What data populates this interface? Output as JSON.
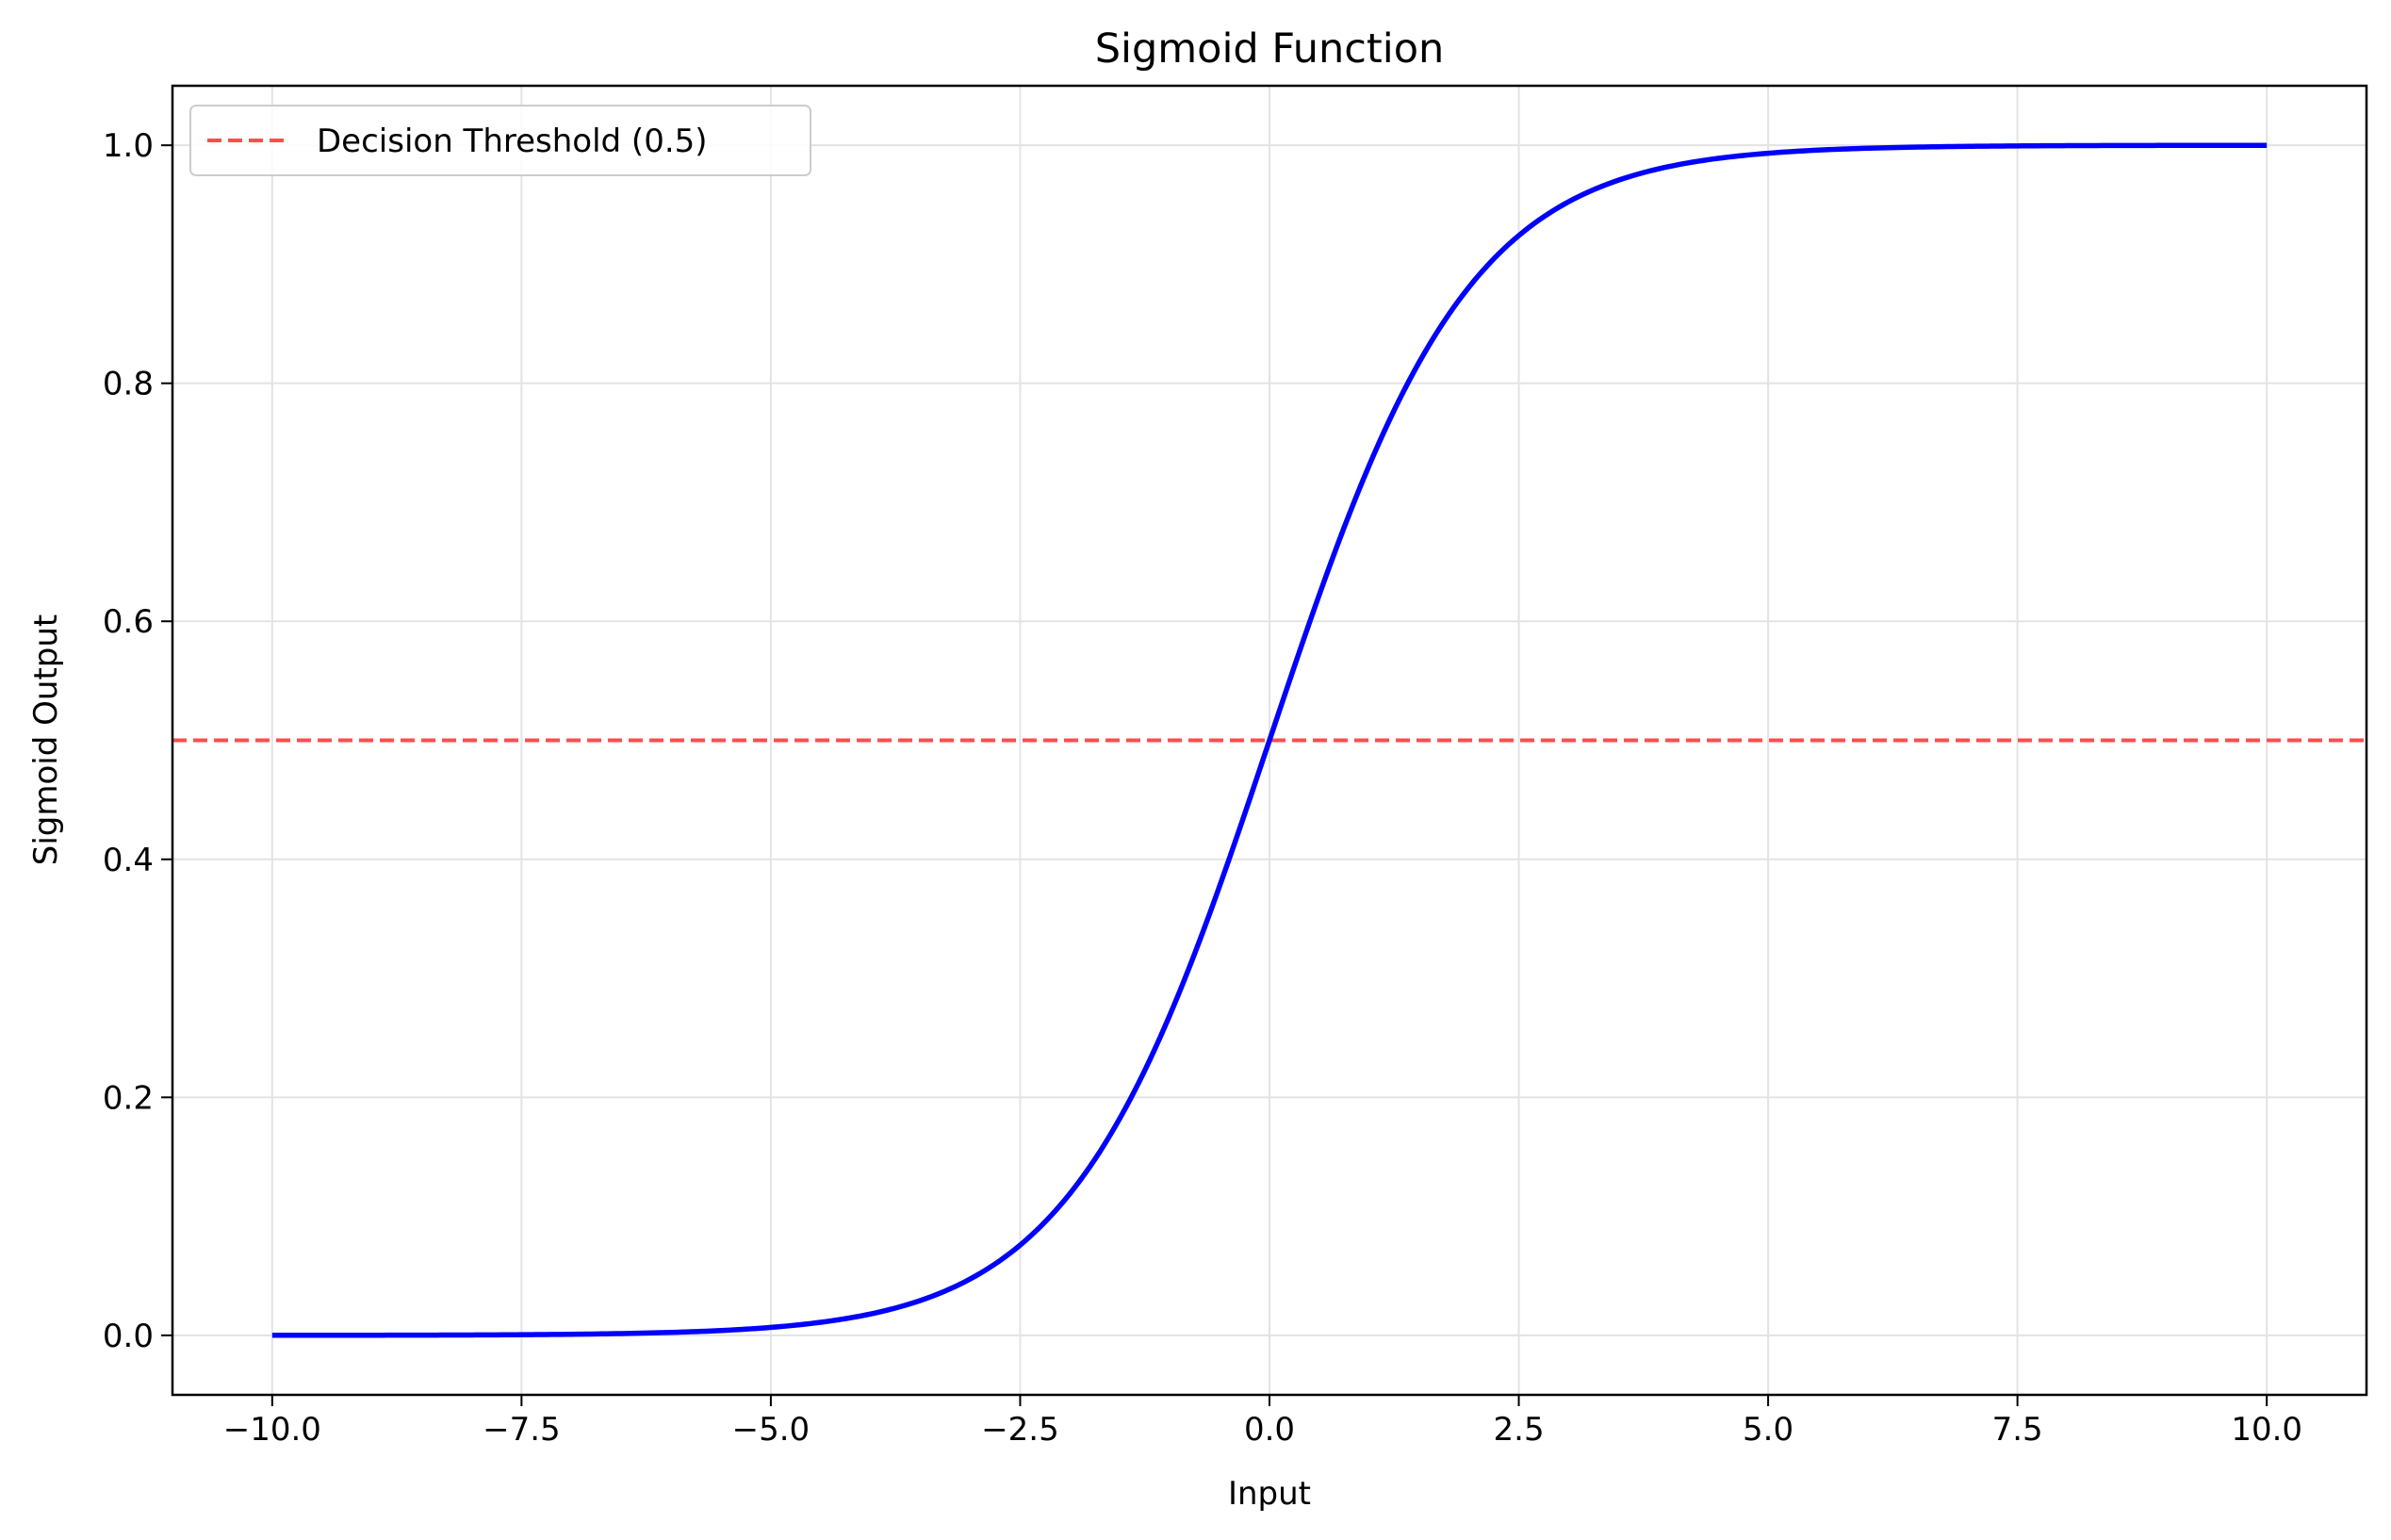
{
  "chart_data": {
    "type": "line",
    "title": "Sigmoid Function",
    "xlabel": "Input",
    "ylabel": "Sigmoid Output",
    "xlim": [
      -11.0,
      11.0
    ],
    "ylim": [
      -0.05,
      1.05
    ],
    "xticks": [
      -10.0,
      -7.5,
      -5.0,
      -2.5,
      0.0,
      2.5,
      5.0,
      7.5,
      10.0
    ],
    "xtick_labels": [
      "−10.0",
      "−7.5",
      "−5.0",
      "−2.5",
      "0.0",
      "2.5",
      "5.0",
      "7.5",
      "10.0"
    ],
    "yticks": [
      0.0,
      0.2,
      0.4,
      0.6,
      0.8,
      1.0
    ],
    "ytick_labels": [
      "0.0",
      "0.2",
      "0.4",
      "0.6",
      "0.8",
      "1.0"
    ],
    "grid": true,
    "legend_placement": "top-left",
    "series": [
      {
        "color": "#0000ff",
        "function": "1 / (1 + exp(-x))",
        "x": [
          -10.0,
          -9.0,
          -8.0,
          -7.5,
          -7.0,
          -6.5,
          -6.0,
          -5.5,
          -5.0,
          -4.5,
          -4.0,
          -3.5,
          -3.0,
          -2.75,
          -2.5,
          -2.25,
          -2.0,
          -1.75,
          -1.5,
          -1.25,
          -1.0,
          -0.75,
          -0.5,
          -0.25,
          0.0,
          0.25,
          0.5,
          0.75,
          1.0,
          1.25,
          1.5,
          1.75,
          2.0,
          2.25,
          2.5,
          2.75,
          3.0,
          3.5,
          4.0,
          4.5,
          5.0,
          5.5,
          6.0,
          6.5,
          7.0,
          7.5,
          8.0,
          9.0,
          10.0
        ],
        "y": [
          4.54e-05,
          0.0001234,
          0.0003354,
          0.0005528,
          0.0009111,
          0.0015011,
          0.0024726,
          0.0040701,
          0.0066929,
          0.0109869,
          0.0179862,
          0.0293122,
          0.0474259,
          0.0600866,
          0.0758582,
          0.0953495,
          0.1192029,
          0.1480472,
          0.1824255,
          0.2227001,
          0.2689414,
          0.3208213,
          0.3775407,
          0.4378235,
          0.5,
          0.5621765,
          0.6224593,
          0.6791787,
          0.7310586,
          0.7772999,
          0.8175745,
          0.8519528,
          0.8807971,
          0.9046505,
          0.9241418,
          0.9399134,
          0.9525741,
          0.9706878,
          0.9820138,
          0.9890131,
          0.9933071,
          0.9959299,
          0.9975274,
          0.9984989,
          0.9990889,
          0.9994472,
          0.9996646,
          0.9998766,
          0.9999546
        ]
      }
    ],
    "reference_lines": [
      {
        "orientation": "horizontal",
        "y": 0.5,
        "name": "Decision Threshold (0.5)",
        "color": "#ff4d4d",
        "style": "dashed"
      }
    ]
  }
}
